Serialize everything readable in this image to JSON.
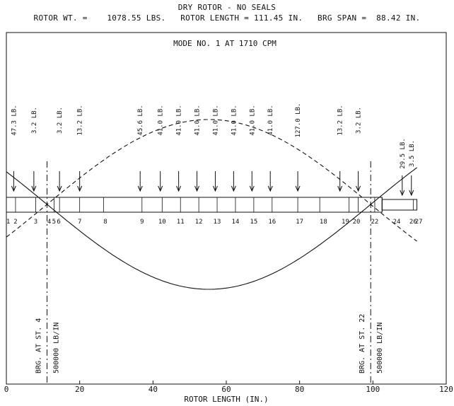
{
  "header": {
    "title": "DRY ROTOR - NO SEALS",
    "info": "ROTOR WT. =    1078.55 LBS.   ROTOR LENGTH = 111.45 IN.   BRG SPAN =  88.42 IN."
  },
  "plot": {
    "mode_label": "MODE NO. 1 AT  1710 CPM",
    "xlabel": "ROTOR LENGTH (IN.)",
    "xlim": [
      0,
      120
    ],
    "x_ticks": [
      "0",
      "20",
      "40",
      "60",
      "80",
      "100",
      "120"
    ]
  },
  "loads": [
    {
      "x": 2.0,
      "label": "47.3 LB."
    },
    {
      "x": 7.5,
      "label": "3.2 LB."
    },
    {
      "x": 14.5,
      "label": "3.2 LB."
    },
    {
      "x": 20.0,
      "label": "13.2 LB."
    },
    {
      "x": 36.5,
      "label": "45.6 LB."
    },
    {
      "x": 42.0,
      "label": "41.0 LB."
    },
    {
      "x": 47.0,
      "label": "41.0 LB."
    },
    {
      "x": 52.0,
      "label": "41.0 LB."
    },
    {
      "x": 57.0,
      "label": "41.0 LB."
    },
    {
      "x": 62.0,
      "label": "41.0 LB."
    },
    {
      "x": 67.0,
      "label": "41.0 LB."
    },
    {
      "x": 72.0,
      "label": "41.0 LB."
    },
    {
      "x": 79.5,
      "label": "127.0 LB."
    },
    {
      "x": 91.0,
      "label": "13.2 LB."
    },
    {
      "x": 96.0,
      "label": "3.2 LB."
    },
    {
      "x": 108.0,
      "label": "29.5 LB."
    },
    {
      "x": 110.5,
      "label": "3.5 LB."
    }
  ],
  "stations": [
    {
      "x": 0.5,
      "label": "1"
    },
    {
      "x": 2.5,
      "label": "2"
    },
    {
      "x": 8.0,
      "label": "3"
    },
    {
      "x": 11.7,
      "label": "4"
    },
    {
      "x": 13.0,
      "label": "5"
    },
    {
      "x": 14.3,
      "label": "6"
    },
    {
      "x": 20.0,
      "label": "7"
    },
    {
      "x": 27.0,
      "label": "8"
    },
    {
      "x": 37.0,
      "label": "9"
    },
    {
      "x": 42.5,
      "label": "10"
    },
    {
      "x": 47.5,
      "label": "11"
    },
    {
      "x": 52.5,
      "label": "12"
    },
    {
      "x": 57.5,
      "label": "13"
    },
    {
      "x": 62.5,
      "label": "14"
    },
    {
      "x": 67.5,
      "label": "15"
    },
    {
      "x": 72.5,
      "label": "16"
    },
    {
      "x": 80.0,
      "label": "17"
    },
    {
      "x": 86.5,
      "label": "18"
    },
    {
      "x": 92.5,
      "label": "19"
    },
    {
      "x": 95.5,
      "label": "20"
    },
    {
      "x": 100.5,
      "label": "22"
    },
    {
      "x": 106.5,
      "label": "24"
    },
    {
      "x": 111.0,
      "label": "26"
    },
    {
      "x": 112.5,
      "label": "27"
    }
  ],
  "bearings": [
    {
      "x": 11.1,
      "label": "BRG. AT ST.  4",
      "stiffness": "500000 LB/IN"
    },
    {
      "x": 99.4,
      "label": "BRG. AT ST. 22",
      "stiffness": "500000 LB/IN"
    }
  ],
  "rotor": {
    "section_x": [
      0,
      2.5,
      8,
      13,
      14.5,
      20,
      26.5,
      37,
      42.5,
      47.5,
      52.5,
      57.5,
      62.5,
      67.5,
      72.5,
      79.5,
      85.5,
      93.5,
      96,
      100.5,
      102.5,
      111,
      112
    ],
    "x_end": 112,
    "hub_x_end": 102.5
  }
}
